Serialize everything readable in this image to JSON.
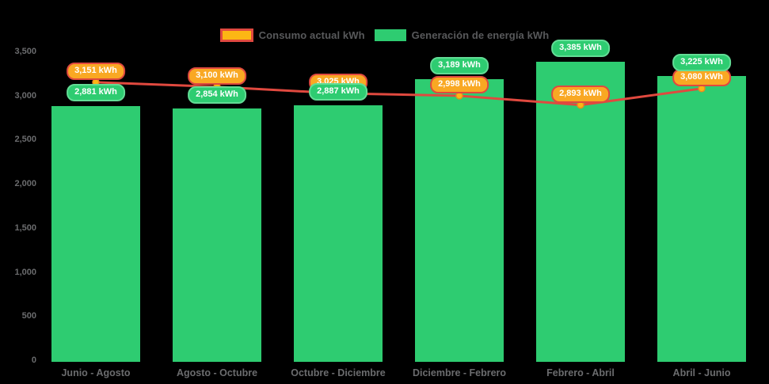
{
  "chart_data": {
    "type": "bar+line",
    "categories": [
      "Junio - Agosto",
      "Agosto - Octubre",
      "Octubre - Diciembre",
      "Diciembre - Febrero",
      "Febrero - Abril",
      "Abril - Junio"
    ],
    "series": [
      {
        "name": "Consumo actual kWh",
        "type": "line",
        "values": [
          3151,
          3100,
          3025,
          2998,
          2893,
          3080
        ],
        "labels": [
          "3,151 kWh",
          "3,100 kWh",
          "3,025 kWh",
          "2,998 kWh",
          "2,893 kWh",
          "3,080 kWh"
        ]
      },
      {
        "name": "Generación de energía kWh",
        "type": "bar",
        "values": [
          2881,
          2854,
          2887,
          3189,
          3385,
          3225
        ],
        "labels": [
          "2,881 kWh",
          "2,854 kWh",
          "2,887 kWh",
          "3,189 kWh",
          "3,385 kWh",
          "3,225 kWh"
        ]
      }
    ],
    "ylim": [
      0,
      3500
    ],
    "ytick_step": 500,
    "ytick_labels": [
      "3,500",
      "3,000",
      "2,500",
      "2,000",
      "1,500",
      "1,000",
      "500",
      "0"
    ],
    "unit": "kWh",
    "legend_position": "top-center",
    "grid": false,
    "title": "",
    "xlabel": "",
    "ylabel": ""
  },
  "colors": {
    "background": "#000000",
    "bar_fill": "#2ecc71",
    "badge_green_fill": "#2ecc71",
    "badge_green_border": "#62dc95",
    "line_stroke": "#e0493f",
    "marker_fill": "#fcb614",
    "marker_stroke": "#ed8a1e",
    "badge_orange_fill": "#f9a823",
    "badge_orange_border": "#e0493f",
    "legend_text": "#58595b",
    "axis_text": "#6b6c6e",
    "badge_text": "#ffffff"
  }
}
